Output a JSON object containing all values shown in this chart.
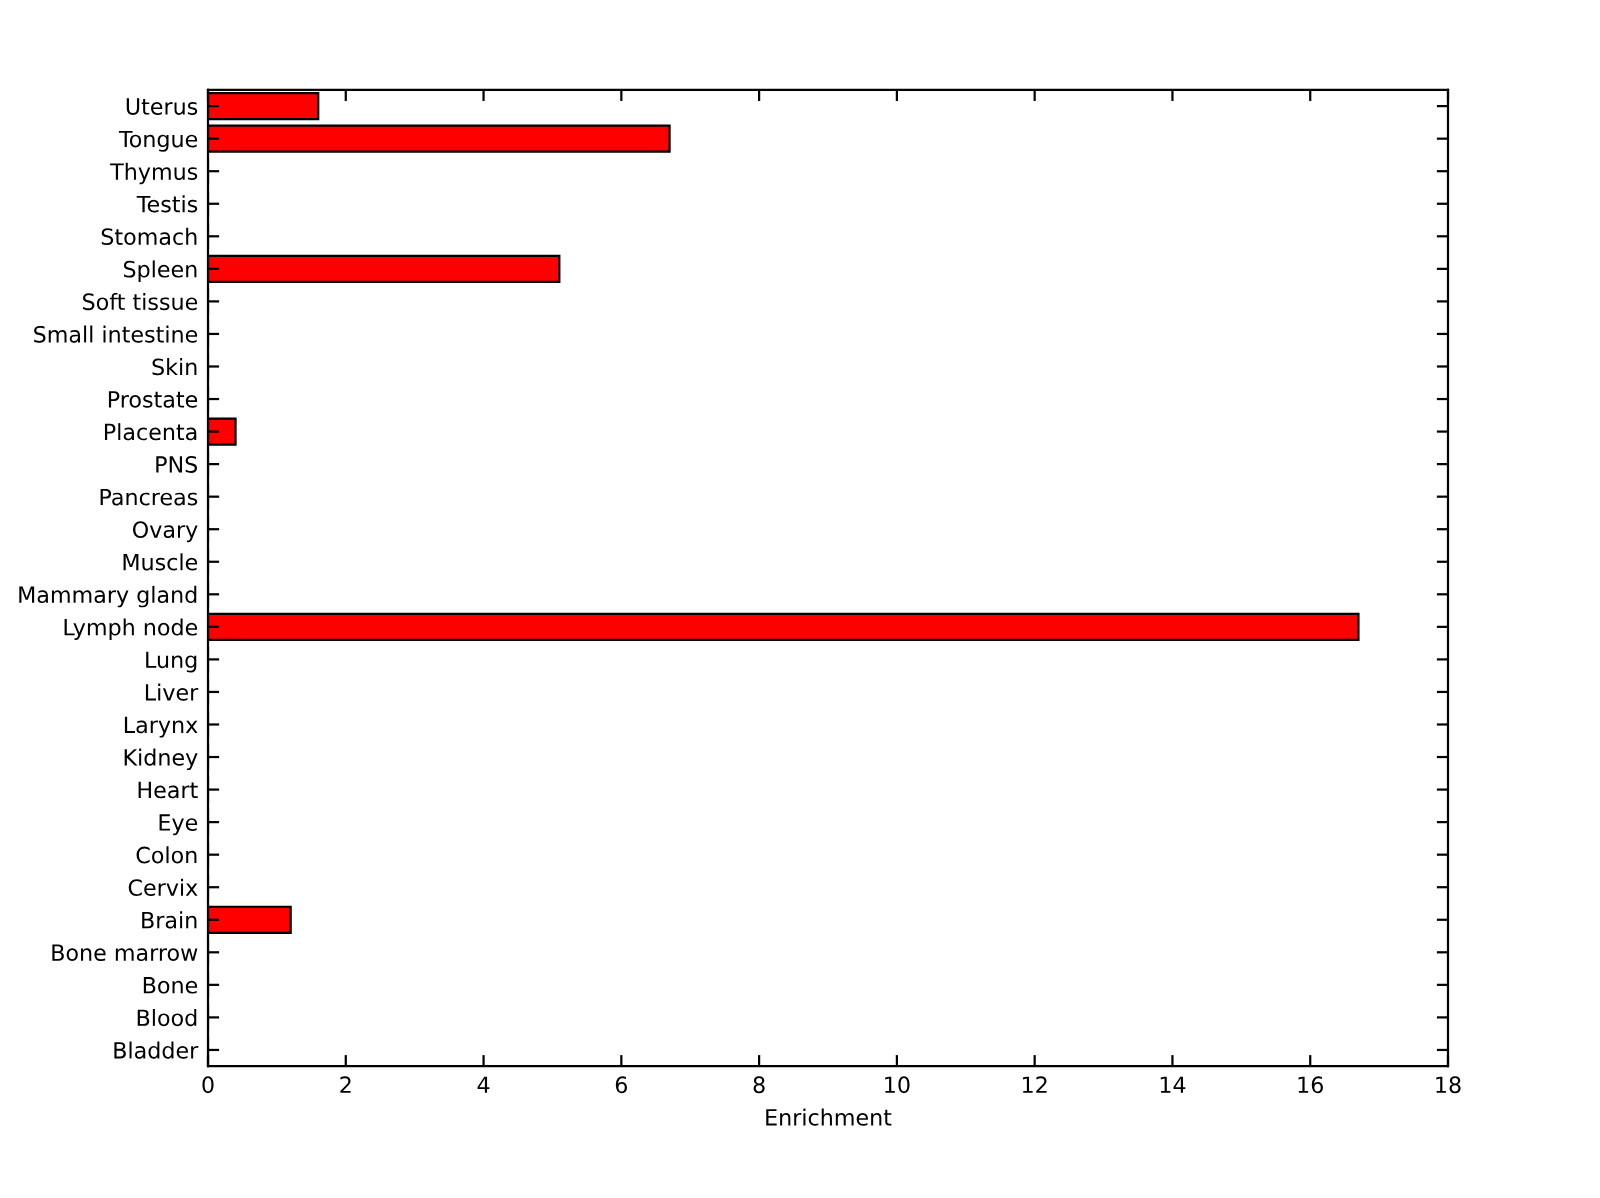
{
  "chart_data": {
    "type": "bar",
    "orientation": "horizontal",
    "xlabel": "Enrichment",
    "categories": [
      "Uterus",
      "Tongue",
      "Thymus",
      "Testis",
      "Stomach",
      "Spleen",
      "Soft tissue",
      "Small intestine",
      "Skin",
      "Prostate",
      "Placenta",
      "PNS",
      "Pancreas",
      "Ovary",
      "Muscle",
      "Mammary gland",
      "Lymph node",
      "Lung",
      "Liver",
      "Larynx",
      "Kidney",
      "Heart",
      "Eye",
      "Colon",
      "Cervix",
      "Brain",
      "Bone marrow",
      "Bone",
      "Blood",
      "Bladder"
    ],
    "values": [
      1.6,
      6.7,
      0,
      0,
      0,
      5.1,
      0,
      0,
      0,
      0,
      0.4,
      0,
      0,
      0,
      0,
      0,
      16.7,
      0,
      0,
      0,
      0,
      0,
      0,
      0,
      0,
      1.2,
      0,
      0,
      0,
      0
    ],
    "color": "#ff0000",
    "xlim": [
      0,
      18
    ],
    "xticks": [
      0,
      2,
      4,
      6,
      8,
      10,
      12,
      14,
      16,
      18
    ],
    "grid": false,
    "legend": false
  }
}
